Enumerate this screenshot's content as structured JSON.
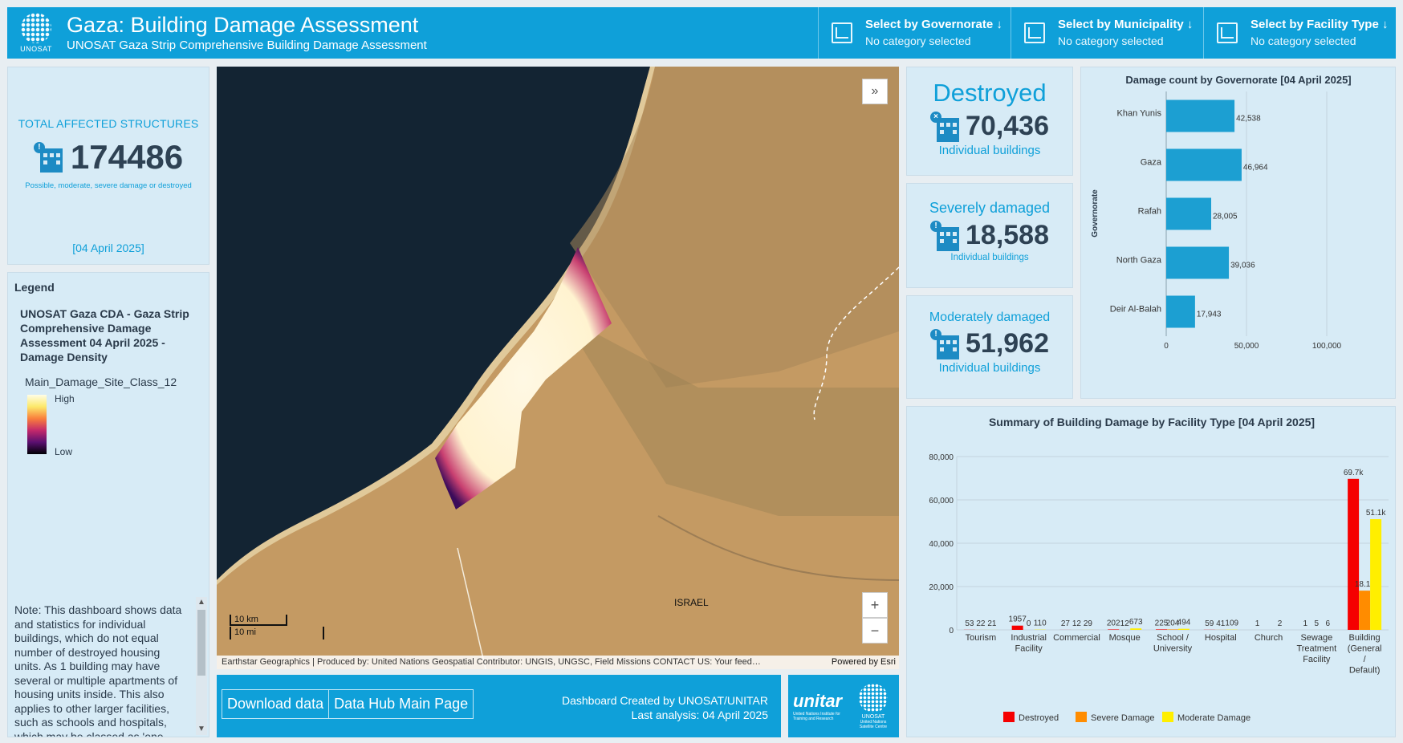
{
  "header": {
    "logo_text": "UNOSAT",
    "title": "Gaza: Building Damage Assessment",
    "subtitle": "UNOSAT Gaza Strip Comprehensive Building Damage Assessment",
    "selectors": [
      {
        "label": "Select by Governorate ↓",
        "value": "No category selected"
      },
      {
        "label": "Select by Municipality ↓",
        "value": "No category selected"
      },
      {
        "label": "Select by Facility Type ↓",
        "value": "No category selected"
      }
    ]
  },
  "total": {
    "label": "TOTAL AFFECTED STRUCTURES",
    "value": "174486",
    "note": "Possible, moderate, severe damage or destroyed",
    "date": "[04 April 2025]"
  },
  "legend": {
    "heading": "Legend",
    "layer": "UNOSAT Gaza CDA - Gaza Strip Comprehensive Damage Assessment 04 April 2025 - Damage Density",
    "field": "Main_Damage_Site_Class_12",
    "high": "High",
    "low": "Low",
    "note": "Note: This dashboard shows data and statistics for individual buildings, which do not equal number of destroyed housing units. As 1 building may have several or multiple apartments of housing units inside. This also applies to other larger facilities, such as schools and hospitals, which may be classed as 'one site'."
  },
  "map": {
    "place_label": "ISRAEL",
    "scale_km": "10 km",
    "scale_mi": "10 mi",
    "attribution": "Earthstar Geographics | Produced by: United Nations Geospatial Contributor: UNGIS, UNGSC, Field Missions CONTACT US: Your feed…",
    "powered_by": "Powered by Esri",
    "zoom_in": "+",
    "zoom_out": "−",
    "expand": "»"
  },
  "footer": {
    "download": "Download data",
    "hub": "Data Hub Main Page",
    "credit_line1": "Dashboard Created by UNOSAT/UNITAR",
    "credit_line2": "Last analysis: 04 April 2025",
    "unitar": "unitar",
    "unitar_sub": "United Nations Institute for Training and Research",
    "unosat": "UNOSAT",
    "unosat_sub": "United Nations Satellite Centre"
  },
  "stats": [
    {
      "title": "Destroyed",
      "value": "70,436",
      "unit": "Individual buildings"
    },
    {
      "title": "Severely damaged",
      "value": "18,588",
      "unit": "Individual buildings"
    },
    {
      "title": "Moderately damaged",
      "value": "51,962",
      "unit": "Individual buildings"
    }
  ],
  "colors": {
    "brand": "#0fa0d9",
    "bar_blue": "#1c9fd2",
    "destroyed": "#f50000",
    "severe": "#ff8c00",
    "moderate": "#ffef00"
  },
  "chart_data": [
    {
      "type": "bar",
      "orientation": "horizontal",
      "title": "Damage count by Governorate [04 April 2025]",
      "ylabel": "Governorate",
      "categories": [
        "Khan Yunis",
        "Gaza",
        "Rafah",
        "North Gaza",
        "Deir Al-Balah"
      ],
      "values": [
        42538,
        46964,
        28005,
        39036,
        17943
      ],
      "value_labels": [
        "42,538",
        "46,964",
        "28,005",
        "39,036",
        "17,943"
      ],
      "xlim": [
        0,
        100000
      ],
      "xticks": [
        0,
        50000,
        100000
      ],
      "xtick_labels": [
        "0",
        "50,000",
        "100,000"
      ],
      "grid": true
    },
    {
      "type": "bar",
      "title": "Summary of Building Damage by Facility Type [04 April 2025]",
      "categories": [
        "Tourism",
        "Industrial Facility",
        "Commercial",
        "Mosque",
        "School / University",
        "Hospital",
        "Church",
        "Sewage Treatment Facility",
        "Building (General / Default)"
      ],
      "category_lines": [
        [
          "Tourism"
        ],
        [
          "Industrial",
          "Facility"
        ],
        [
          "Commercial"
        ],
        [
          "Mosque"
        ],
        [
          "School /",
          "University"
        ],
        [
          "Hospital"
        ],
        [
          "Church"
        ],
        [
          "Sewage",
          "Treatment",
          "Facility"
        ],
        [
          "Building",
          "(General",
          "/",
          "Default)"
        ]
      ],
      "series": [
        {
          "name": "Destroyed",
          "values": [
            53,
            1957,
            27,
            202,
            225,
            59,
            1,
            1,
            69700
          ],
          "labels": [
            "53",
            "1957",
            "27",
            "202",
            "225",
            "59",
            "1",
            "1",
            "69.7k"
          ]
        },
        {
          "name": "Severe Damage",
          "values": [
            22,
            0,
            12,
            12,
            204,
            41,
            0,
            5,
            18100
          ],
          "labels": [
            "22",
            "0",
            "12",
            "12",
            "204",
            "41",
            "",
            "5",
            "18.1k"
          ]
        },
        {
          "name": "Moderate Damage",
          "values": [
            21,
            110,
            29,
            673,
            494,
            109,
            2,
            6,
            51100
          ],
          "labels": [
            "21",
            "110",
            "29",
            "673",
            "494",
            "109",
            "2",
            "6",
            "51.1k"
          ]
        }
      ],
      "ylim": [
        0,
        80000
      ],
      "yticks": [
        0,
        20000,
        40000,
        60000,
        80000
      ],
      "ytick_labels": [
        "0",
        "20,000",
        "40,000",
        "60,000",
        "80,000"
      ],
      "legend_position": "bottom",
      "grid": true
    }
  ]
}
